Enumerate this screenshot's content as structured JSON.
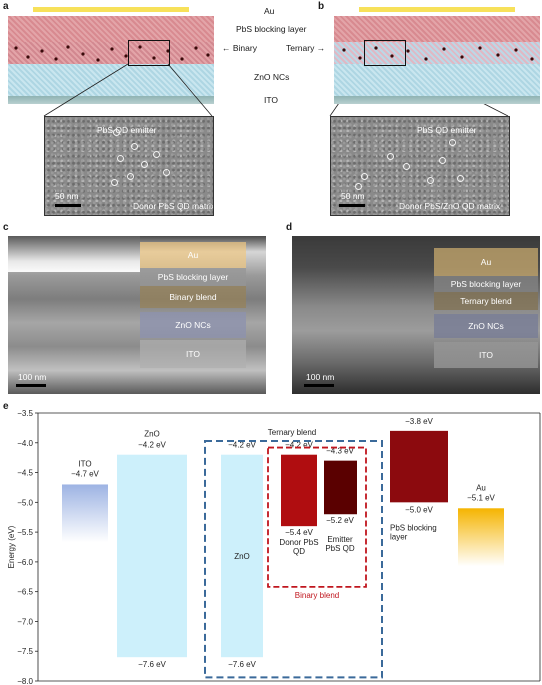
{
  "panel_a": {
    "letter": "a",
    "au": "Au",
    "blocking": "PbS blocking layer",
    "side_label": "Binary",
    "zno": "ZnO NCs",
    "ito": "ITO",
    "tem_emitter": "PbS QD emitter",
    "tem_matrix": "Donor PbS QD matrix",
    "scale": "50 nm"
  },
  "panel_b": {
    "letter": "b",
    "side_label": "Ternary",
    "tem_emitter": "PbS QD emitter",
    "tem_matrix": "Donor PbS/ZnO QD matrix",
    "scale": "50 nm"
  },
  "panel_c": {
    "letter": "c",
    "layers": [
      "Au",
      "PbS blocking layer",
      "Binary blend",
      "ZnO NCs",
      "ITO"
    ],
    "scale": "100 nm"
  },
  "panel_d": {
    "letter": "d",
    "layers": [
      "Au",
      "PbS blocking layer",
      "Ternary blend",
      "ZnO NCs",
      "ITO"
    ],
    "scale": "100 nm"
  },
  "panel_e": {
    "letter": "e",
    "ylabel": "Energy (eV)",
    "ternary_label": "Ternary blend",
    "binary_label": "Binary blend",
    "colors": {
      "ito": "#9db3e3",
      "zno": "#cdf0fb",
      "donor": "#b00d10",
      "emitter": "#5a0000",
      "blocking": "#8c0a0e",
      "au": "#f5b400",
      "ternary_box": "#3b6a9a",
      "binary_box": "#c0161e"
    }
  },
  "chart_data": {
    "type": "bar",
    "ylabel": "Energy (eV)",
    "ylim": [
      -8.0,
      -3.5
    ],
    "yticks": [
      "-3.5",
      "-4.0",
      "-4.5",
      "-5.0",
      "-5.5",
      "-6.0",
      "-6.5",
      "-7.0",
      "-7.5",
      "-8.0"
    ],
    "levels": [
      {
        "name": "ITO",
        "top": -4.7,
        "bottom": null,
        "labels": [
          "ITO",
          "−4.7 eV"
        ]
      },
      {
        "name": "ZnO",
        "top": -4.2,
        "bottom": -7.6,
        "labels": [
          "ZnO",
          "−4.2 eV"
        ],
        "bottom_label": "−7.6 eV"
      },
      {
        "name": "ZnO",
        "top": -4.2,
        "bottom": -7.6,
        "labels": [
          "−4.2 eV"
        ],
        "bottom_label": "−7.6 eV",
        "inner": "ZnO"
      },
      {
        "name": "Donor PbS QD",
        "top": -4.2,
        "bottom": -5.4,
        "labels": [
          "−4.2 eV"
        ],
        "bottom_label": "−5.4 eV",
        "under": [
          "Donor PbS",
          "QD"
        ]
      },
      {
        "name": "Emitter PbS QD",
        "top": -4.3,
        "bottom": -5.2,
        "labels": [
          "−4.3 eV"
        ],
        "bottom_label": "−5.2 eV",
        "under": [
          "Emitter",
          "PbS QD"
        ]
      },
      {
        "name": "PbS blocking layer",
        "top": -3.8,
        "bottom": -5.0,
        "labels": [
          "−3.8 eV"
        ],
        "bottom_label": "−5.0 eV",
        "under": [
          "PbS blocking",
          "layer"
        ]
      },
      {
        "name": "Au",
        "top": -5.1,
        "bottom": null,
        "labels": [
          "Au",
          "−5.1 eV"
        ]
      }
    ]
  }
}
